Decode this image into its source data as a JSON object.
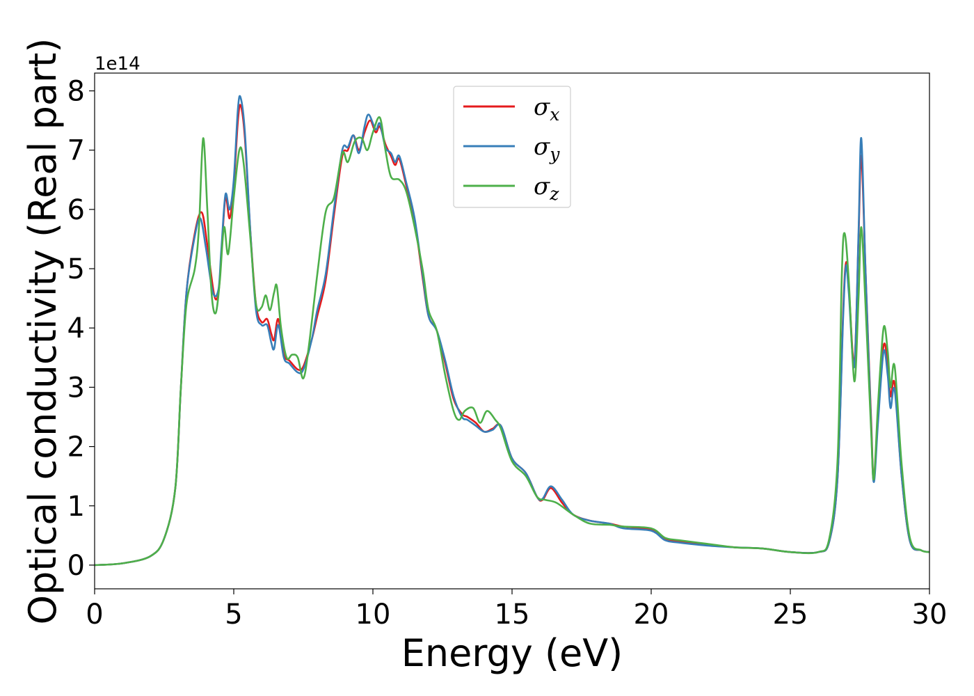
{
  "chart_data": {
    "type": "line",
    "xlabel": "Energy (eV)",
    "ylabel": "Optical conductivity (Real part)",
    "y_offset_label": "1e14",
    "xlim": [
      0,
      30
    ],
    "ylim": [
      -0.4,
      8.3
    ],
    "xticks": [
      0,
      5,
      10,
      15,
      20,
      25,
      30
    ],
    "yticks": [
      0,
      1,
      2,
      3,
      4,
      5,
      6,
      7,
      8
    ],
    "grid": false,
    "legend_position": "top-center",
    "series": [
      {
        "name": "σ",
        "subscript": "x",
        "color": "#e41a1c",
        "points": [
          [
            0,
            0
          ],
          [
            1,
            0.03
          ],
          [
            2,
            0.15
          ],
          [
            2.5,
            0.45
          ],
          [
            2.9,
            1.3
          ],
          [
            3.1,
            3
          ],
          [
            3.3,
            4.6
          ],
          [
            3.6,
            5.6
          ],
          [
            3.85,
            5.95
          ],
          [
            4.05,
            5.4
          ],
          [
            4.3,
            4.55
          ],
          [
            4.45,
            4.6
          ],
          [
            4.55,
            5.2
          ],
          [
            4.7,
            6.2
          ],
          [
            4.85,
            5.85
          ],
          [
            5.0,
            6.4
          ],
          [
            5.15,
            7.5
          ],
          [
            5.25,
            7.75
          ],
          [
            5.4,
            7.2
          ],
          [
            5.6,
            5.6
          ],
          [
            5.8,
            4.4
          ],
          [
            6.0,
            4.1
          ],
          [
            6.2,
            4.15
          ],
          [
            6.35,
            3.9
          ],
          [
            6.45,
            3.8
          ],
          [
            6.6,
            4.15
          ],
          [
            6.8,
            3.55
          ],
          [
            7.0,
            3.45
          ],
          [
            7.3,
            3.3
          ],
          [
            7.5,
            3.35
          ],
          [
            7.8,
            3.8
          ],
          [
            8.0,
            4.2
          ],
          [
            8.3,
            4.8
          ],
          [
            8.6,
            5.9
          ],
          [
            8.9,
            6.9
          ],
          [
            9.1,
            7.0
          ],
          [
            9.3,
            7.25
          ],
          [
            9.5,
            7.0
          ],
          [
            9.7,
            7.3
          ],
          [
            9.9,
            7.5
          ],
          [
            10.1,
            7.3
          ],
          [
            10.25,
            7.4
          ],
          [
            10.45,
            7.1
          ],
          [
            10.65,
            6.9
          ],
          [
            10.8,
            6.75
          ],
          [
            10.95,
            6.85
          ],
          [
            11.2,
            6.4
          ],
          [
            11.5,
            5.8
          ],
          [
            11.8,
            4.8
          ],
          [
            12.0,
            4.2
          ],
          [
            12.3,
            3.95
          ],
          [
            12.6,
            3.4
          ],
          [
            12.9,
            2.8
          ],
          [
            13.2,
            2.55
          ],
          [
            13.4,
            2.5
          ],
          [
            13.7,
            2.4
          ],
          [
            14.0,
            2.25
          ],
          [
            14.3,
            2.3
          ],
          [
            14.6,
            2.35
          ],
          [
            15.0,
            1.8
          ],
          [
            15.5,
            1.55
          ],
          [
            15.9,
            1.15
          ],
          [
            16.1,
            1.1
          ],
          [
            16.4,
            1.3
          ],
          [
            16.8,
            1.05
          ],
          [
            17.2,
            0.85
          ],
          [
            17.8,
            0.75
          ],
          [
            18.5,
            0.7
          ],
          [
            19,
            0.65
          ],
          [
            20,
            0.6
          ],
          [
            20.5,
            0.45
          ],
          [
            21,
            0.4
          ],
          [
            22,
            0.35
          ],
          [
            23,
            0.3
          ],
          [
            24,
            0.28
          ],
          [
            25,
            0.22
          ],
          [
            26,
            0.22
          ],
          [
            26.4,
            0.4
          ],
          [
            26.7,
            1.5
          ],
          [
            26.9,
            4.3
          ],
          [
            27.0,
            5.1
          ],
          [
            27.1,
            4.7
          ],
          [
            27.3,
            3.4
          ],
          [
            27.45,
            5.5
          ],
          [
            27.55,
            6.9
          ],
          [
            27.7,
            5.0
          ],
          [
            27.9,
            2.5
          ],
          [
            28.0,
            1.45
          ],
          [
            28.15,
            2.5
          ],
          [
            28.35,
            3.7
          ],
          [
            28.5,
            3.4
          ],
          [
            28.6,
            2.85
          ],
          [
            28.75,
            3.05
          ],
          [
            29.0,
            1.5
          ],
          [
            29.3,
            0.4
          ],
          [
            29.7,
            0.25
          ],
          [
            30,
            0.22
          ]
        ]
      },
      {
        "name": "σ",
        "subscript": "y",
        "color": "#377eb8",
        "points": [
          [
            0,
            0
          ],
          [
            1,
            0.03
          ],
          [
            2,
            0.15
          ],
          [
            2.5,
            0.45
          ],
          [
            2.9,
            1.3
          ],
          [
            3.1,
            3
          ],
          [
            3.3,
            4.6
          ],
          [
            3.6,
            5.55
          ],
          [
            3.8,
            5.85
          ],
          [
            4.0,
            5.35
          ],
          [
            4.25,
            4.6
          ],
          [
            4.45,
            4.65
          ],
          [
            4.55,
            5.3
          ],
          [
            4.7,
            6.25
          ],
          [
            4.85,
            6.0
          ],
          [
            5.0,
            6.5
          ],
          [
            5.15,
            7.7
          ],
          [
            5.25,
            7.88
          ],
          [
            5.4,
            7.3
          ],
          [
            5.6,
            5.6
          ],
          [
            5.8,
            4.3
          ],
          [
            6.0,
            4.05
          ],
          [
            6.2,
            4.05
          ],
          [
            6.35,
            3.75
          ],
          [
            6.45,
            3.65
          ],
          [
            6.6,
            4.05
          ],
          [
            6.8,
            3.5
          ],
          [
            7.0,
            3.4
          ],
          [
            7.3,
            3.25
          ],
          [
            7.5,
            3.3
          ],
          [
            7.8,
            3.8
          ],
          [
            8.0,
            4.3
          ],
          [
            8.3,
            4.9
          ],
          [
            8.6,
            6.0
          ],
          [
            8.9,
            7.0
          ],
          [
            9.1,
            7.05
          ],
          [
            9.3,
            7.25
          ],
          [
            9.5,
            6.95
          ],
          [
            9.7,
            7.4
          ],
          [
            9.85,
            7.6
          ],
          [
            10.1,
            7.35
          ],
          [
            10.25,
            7.45
          ],
          [
            10.45,
            7.05
          ],
          [
            10.65,
            6.95
          ],
          [
            10.8,
            6.8
          ],
          [
            10.95,
            6.9
          ],
          [
            11.2,
            6.45
          ],
          [
            11.5,
            5.85
          ],
          [
            11.8,
            4.85
          ],
          [
            12.0,
            4.2
          ],
          [
            12.3,
            3.95
          ],
          [
            12.6,
            3.45
          ],
          [
            12.9,
            2.85
          ],
          [
            13.2,
            2.5
          ],
          [
            13.4,
            2.45
          ],
          [
            13.7,
            2.35
          ],
          [
            14.0,
            2.25
          ],
          [
            14.3,
            2.28
          ],
          [
            14.6,
            2.35
          ],
          [
            15.0,
            1.8
          ],
          [
            15.5,
            1.55
          ],
          [
            15.9,
            1.15
          ],
          [
            16.1,
            1.12
          ],
          [
            16.4,
            1.33
          ],
          [
            16.8,
            1.1
          ],
          [
            17.2,
            0.85
          ],
          [
            17.8,
            0.75
          ],
          [
            18.5,
            0.7
          ],
          [
            19,
            0.62
          ],
          [
            20,
            0.58
          ],
          [
            20.5,
            0.42
          ],
          [
            21,
            0.38
          ],
          [
            22,
            0.33
          ],
          [
            23,
            0.3
          ],
          [
            24,
            0.28
          ],
          [
            25,
            0.22
          ],
          [
            26,
            0.22
          ],
          [
            26.4,
            0.4
          ],
          [
            26.7,
            1.5
          ],
          [
            26.9,
            4.2
          ],
          [
            27.0,
            5.05
          ],
          [
            27.1,
            4.6
          ],
          [
            27.3,
            3.35
          ],
          [
            27.45,
            5.6
          ],
          [
            27.55,
            7.2
          ],
          [
            27.7,
            5.0
          ],
          [
            27.9,
            2.4
          ],
          [
            28.0,
            1.4
          ],
          [
            28.15,
            2.4
          ],
          [
            28.35,
            3.6
          ],
          [
            28.5,
            3.2
          ],
          [
            28.6,
            2.65
          ],
          [
            28.75,
            2.95
          ],
          [
            29.0,
            1.5
          ],
          [
            29.3,
            0.4
          ],
          [
            29.7,
            0.25
          ],
          [
            30,
            0.22
          ]
        ]
      },
      {
        "name": "σ",
        "subscript": "z",
        "color": "#4daf4a",
        "points": [
          [
            0,
            0
          ],
          [
            1,
            0.03
          ],
          [
            2,
            0.15
          ],
          [
            2.5,
            0.45
          ],
          [
            2.9,
            1.3
          ],
          [
            3.1,
            3
          ],
          [
            3.3,
            4.4
          ],
          [
            3.6,
            5.0
          ],
          [
            3.75,
            5.7
          ],
          [
            3.9,
            7.2
          ],
          [
            4.05,
            6.0
          ],
          [
            4.2,
            4.6
          ],
          [
            4.35,
            4.25
          ],
          [
            4.5,
            4.8
          ],
          [
            4.65,
            5.7
          ],
          [
            4.8,
            5.25
          ],
          [
            5.0,
            6.2
          ],
          [
            5.2,
            7.0
          ],
          [
            5.35,
            6.8
          ],
          [
            5.6,
            5.5
          ],
          [
            5.8,
            4.4
          ],
          [
            6.0,
            4.35
          ],
          [
            6.15,
            4.55
          ],
          [
            6.3,
            4.3
          ],
          [
            6.45,
            4.6
          ],
          [
            6.55,
            4.7
          ],
          [
            6.7,
            4.0
          ],
          [
            6.9,
            3.5
          ],
          [
            7.1,
            3.55
          ],
          [
            7.3,
            3.5
          ],
          [
            7.5,
            3.15
          ],
          [
            7.7,
            3.7
          ],
          [
            8.0,
            4.9
          ],
          [
            8.3,
            5.95
          ],
          [
            8.6,
            6.2
          ],
          [
            8.9,
            6.95
          ],
          [
            9.1,
            6.8
          ],
          [
            9.35,
            7.15
          ],
          [
            9.6,
            7.2
          ],
          [
            9.8,
            7.0
          ],
          [
            10.0,
            7.3
          ],
          [
            10.25,
            7.55
          ],
          [
            10.45,
            7.0
          ],
          [
            10.65,
            6.55
          ],
          [
            10.95,
            6.5
          ],
          [
            11.2,
            6.3
          ],
          [
            11.5,
            5.7
          ],
          [
            11.8,
            4.95
          ],
          [
            12.0,
            4.3
          ],
          [
            12.3,
            3.95
          ],
          [
            12.6,
            3.2
          ],
          [
            12.9,
            2.6
          ],
          [
            13.1,
            2.45
          ],
          [
            13.3,
            2.6
          ],
          [
            13.6,
            2.65
          ],
          [
            13.85,
            2.4
          ],
          [
            14.1,
            2.6
          ],
          [
            14.4,
            2.45
          ],
          [
            14.6,
            2.3
          ],
          [
            15.0,
            1.75
          ],
          [
            15.5,
            1.5
          ],
          [
            15.9,
            1.15
          ],
          [
            16.2,
            1.1
          ],
          [
            16.6,
            1.05
          ],
          [
            17.2,
            0.85
          ],
          [
            17.8,
            0.7
          ],
          [
            18.5,
            0.68
          ],
          [
            19,
            0.65
          ],
          [
            20,
            0.62
          ],
          [
            20.5,
            0.46
          ],
          [
            21,
            0.42
          ],
          [
            22,
            0.36
          ],
          [
            23,
            0.3
          ],
          [
            24,
            0.28
          ],
          [
            25,
            0.22
          ],
          [
            26,
            0.22
          ],
          [
            26.4,
            0.45
          ],
          [
            26.7,
            1.8
          ],
          [
            26.85,
            4.9
          ],
          [
            26.95,
            5.6
          ],
          [
            27.1,
            4.8
          ],
          [
            27.3,
            3.1
          ],
          [
            27.45,
            4.5
          ],
          [
            27.55,
            5.7
          ],
          [
            27.7,
            4.4
          ],
          [
            27.9,
            2.3
          ],
          [
            28.0,
            1.45
          ],
          [
            28.15,
            2.7
          ],
          [
            28.35,
            4.0
          ],
          [
            28.5,
            3.6
          ],
          [
            28.6,
            3.0
          ],
          [
            28.75,
            3.35
          ],
          [
            29.0,
            1.7
          ],
          [
            29.3,
            0.45
          ],
          [
            29.7,
            0.25
          ],
          [
            30,
            0.22
          ]
        ]
      }
    ]
  }
}
